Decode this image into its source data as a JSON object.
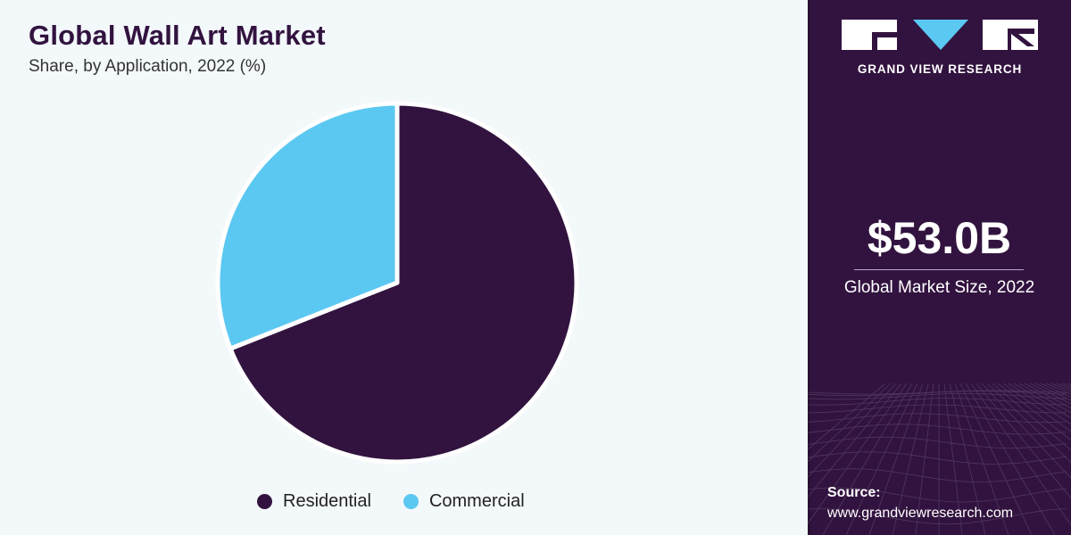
{
  "chart_data": {
    "type": "pie",
    "title": "Global Wall Art Market",
    "subtitle": "Share, by Application, 2022 (%)",
    "categories": [
      "Residential",
      "Commercial"
    ],
    "values": [
      69,
      31
    ],
    "legend_position": "bottom"
  },
  "colors": {
    "residential": "#32133f",
    "commercial": "#5bc8f2",
    "background": "#f3f8fb",
    "panel": "#32133f"
  },
  "sidebar": {
    "brand_name": "GRAND VIEW RESEARCH",
    "market_value": "$53.0B",
    "market_label": "Global Market Size, 2022",
    "source_label": "Source:",
    "source_url": "www.grandviewresearch.com"
  }
}
